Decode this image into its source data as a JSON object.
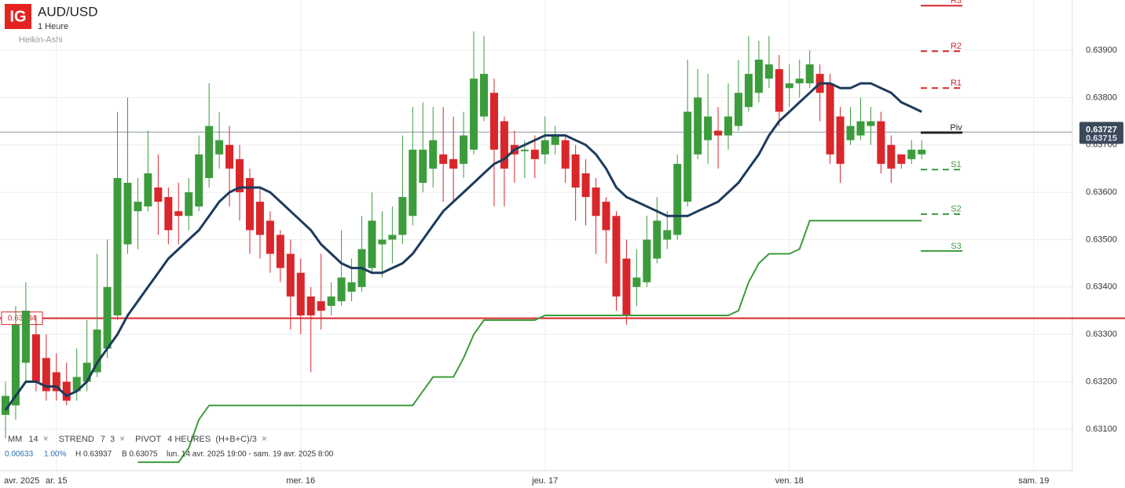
{
  "chart_data": {
    "type": "candlestick",
    "logo": "IG",
    "title": "AUD/USD",
    "subtitle": "1 Heure",
    "chart_style": "Heikin-Ashi",
    "up_color": "#3c9c3c",
    "down_color": "#d9262a",
    "open": [
      0.6313,
      0.6315,
      0.6324,
      0.633,
      0.6325,
      0.6322,
      0.632,
      0.6318,
      0.632,
      0.6322,
      0.6327,
      0.6334,
      0.6349,
      0.6356,
      0.6357,
      0.6361,
      0.6359,
      0.6356,
      0.6355,
      0.6357,
      0.6363,
      0.6368,
      0.637,
      0.6367,
      0.6363,
      0.6358,
      0.6354,
      0.6351,
      0.6347,
      0.6343,
      0.6338,
      0.6337,
      0.6336,
      0.6337,
      0.6339,
      0.634,
      0.6344,
      0.6349,
      0.635,
      0.6351,
      0.6355,
      0.6362,
      0.6365,
      0.6368,
      0.6367,
      0.6366,
      0.6369,
      0.6376,
      0.6381,
      0.6375,
      0.637,
      0.6369,
      0.6369,
      0.6368,
      0.637,
      0.6371,
      0.6368,
      0.6364,
      0.6361,
      0.6358,
      0.6355,
      0.6346,
      0.634,
      0.6341,
      0.6346,
      0.635,
      0.6351,
      0.6358,
      0.6368,
      0.6371,
      0.6373,
      0.6372,
      0.6374,
      0.6378,
      0.6381,
      0.6384,
      0.6386,
      0.6382,
      0.6383,
      0.6383,
      0.6385,
      0.6383,
      0.6376,
      0.6371,
      0.6372,
      0.6374,
      0.6375,
      0.637,
      0.6368,
      0.6367,
      0.6368
    ],
    "high": [
      0.632,
      0.6336,
      0.6341,
      0.6334,
      0.633,
      0.6326,
      0.6324,
      0.6327,
      0.6333,
      0.6347,
      0.635,
      0.6377,
      0.638,
      0.6363,
      0.6373,
      0.6368,
      0.6361,
      0.6362,
      0.6363,
      0.6372,
      0.6383,
      0.6377,
      0.6374,
      0.637,
      0.6365,
      0.6361,
      0.6356,
      0.6352,
      0.635,
      0.6346,
      0.634,
      0.6347,
      0.6341,
      0.6352,
      0.6346,
      0.6355,
      0.636,
      0.6356,
      0.6357,
      0.6372,
      0.6378,
      0.6379,
      0.6378,
      0.6378,
      0.6376,
      0.6377,
      0.6394,
      0.6393,
      0.6384,
      0.6376,
      0.6373,
      0.6371,
      0.6372,
      0.6376,
      0.6374,
      0.6372,
      0.637,
      0.6367,
      0.6363,
      0.6359,
      0.6356,
      0.635,
      0.6348,
      0.6355,
      0.6359,
      0.6356,
      0.6368,
      0.6388,
      0.6386,
      0.6385,
      0.6378,
      0.6383,
      0.6388,
      0.6393,
      0.6392,
      0.6393,
      0.6389,
      0.6387,
      0.6388,
      0.639,
      0.6387,
      0.6385,
      0.6378,
      0.6378,
      0.638,
      0.6378,
      0.6377,
      0.6372,
      0.6368,
      0.6371,
      0.6371
    ],
    "low": [
      0.6308,
      0.6312,
      0.632,
      0.6318,
      0.6316,
      0.6316,
      0.6315,
      0.6316,
      0.6318,
      0.6321,
      0.6325,
      0.6333,
      0.6347,
      0.6348,
      0.6356,
      0.6351,
      0.6349,
      0.6349,
      0.6352,
      0.6356,
      0.6361,
      0.6365,
      0.6357,
      0.6354,
      0.6347,
      0.6346,
      0.6343,
      0.6341,
      0.6331,
      0.633,
      0.6322,
      0.6331,
      0.6334,
      0.6336,
      0.6337,
      0.6339,
      0.6343,
      0.6342,
      0.6345,
      0.6349,
      0.6353,
      0.636,
      0.6361,
      0.6358,
      0.6358,
      0.6363,
      0.6368,
      0.6375,
      0.6357,
      0.6357,
      0.6362,
      0.6363,
      0.6363,
      0.6366,
      0.6368,
      0.6362,
      0.6354,
      0.6353,
      0.6347,
      0.6345,
      0.6335,
      0.6332,
      0.6336,
      0.634,
      0.6345,
      0.6348,
      0.635,
      0.6357,
      0.6367,
      0.6366,
      0.6365,
      0.6369,
      0.6373,
      0.6377,
      0.6379,
      0.6382,
      0.6374,
      0.6378,
      0.638,
      0.6382,
      0.6375,
      0.6366,
      0.6362,
      0.637,
      0.6371,
      0.637,
      0.6364,
      0.6362,
      0.6365,
      0.6366,
      0.6367
    ],
    "close": [
      0.6317,
      0.6332,
      0.6335,
      0.632,
      0.6318,
      0.6318,
      0.6316,
      0.6321,
      0.6324,
      0.6331,
      0.634,
      0.6363,
      0.6362,
      0.6358,
      0.6364,
      0.6358,
      0.6352,
      0.6355,
      0.636,
      0.6368,
      0.6374,
      0.6371,
      0.6365,
      0.636,
      0.6352,
      0.6351,
      0.6347,
      0.6344,
      0.6338,
      0.6334,
      0.6334,
      0.6335,
      0.6338,
      0.6342,
      0.6341,
      0.6348,
      0.6354,
      0.635,
      0.6351,
      0.6359,
      0.6369,
      0.6369,
      0.6371,
      0.6366,
      0.6365,
      0.6372,
      0.6384,
      0.6385,
      0.6369,
      0.6365,
      0.6368,
      0.6369,
      0.6367,
      0.6371,
      0.6372,
      0.6365,
      0.6361,
      0.6359,
      0.6355,
      0.6352,
      0.6338,
      0.6334,
      0.6342,
      0.635,
      0.6354,
      0.6352,
      0.6366,
      0.6377,
      0.638,
      0.6376,
      0.6372,
      0.6376,
      0.6381,
      0.6385,
      0.6388,
      0.6387,
      0.6377,
      0.6383,
      0.6384,
      0.6387,
      0.6381,
      0.6368,
      0.6366,
      0.6374,
      0.6375,
      0.6375,
      0.6366,
      0.6365,
      0.6366,
      0.6369,
      0.6369
    ],
    "indicators": [
      {
        "name": "MM",
        "params": "14",
        "color": "#1d3b5c",
        "values": [
          0.6314,
          0.6317,
          0.632,
          0.632,
          0.6319,
          0.6319,
          0.6317,
          0.6318,
          0.632,
          0.6324,
          0.6327,
          0.633,
          0.6334,
          0.6337,
          0.634,
          0.6343,
          0.6346,
          0.6348,
          0.635,
          0.6352,
          0.6355,
          0.6358,
          0.636,
          0.6361,
          0.6361,
          0.6361,
          0.636,
          0.6358,
          0.6356,
          0.6354,
          0.6352,
          0.6349,
          0.6347,
          0.6345,
          0.6344,
          0.6344,
          0.6343,
          0.6343,
          0.6344,
          0.6345,
          0.6347,
          0.635,
          0.6353,
          0.6356,
          0.6358,
          0.636,
          0.6362,
          0.6364,
          0.6366,
          0.6367,
          0.6369,
          0.637,
          0.6371,
          0.6372,
          0.6372,
          0.6372,
          0.6371,
          0.637,
          0.6368,
          0.6365,
          0.6361,
          0.6359,
          0.6358,
          0.6357,
          0.6356,
          0.6355,
          0.6355,
          0.6355,
          0.6356,
          0.6357,
          0.6358,
          0.636,
          0.6362,
          0.6365,
          0.6368,
          0.6372,
          0.6375,
          0.6377,
          0.6379,
          0.6381,
          0.6383,
          0.6383,
          0.6382,
          0.6382,
          0.6383,
          0.6383,
          0.6382,
          0.6381,
          0.6379,
          0.6378,
          0.6377
        ]
      },
      {
        "name": "STREND",
        "params": "7  3",
        "color": "#3c9c3c",
        "values": [
          null,
          null,
          null,
          null,
          null,
          null,
          null,
          null,
          null,
          null,
          null,
          null,
          null,
          0.6303,
          0.6303,
          0.6303,
          0.6303,
          0.6303,
          0.6306,
          0.6312,
          0.6315,
          0.6315,
          0.6315,
          0.6315,
          0.6315,
          0.6315,
          0.6315,
          0.6315,
          0.6315,
          0.6315,
          0.6315,
          0.6315,
          0.6315,
          0.6315,
          0.6315,
          0.6315,
          0.6315,
          0.6315,
          0.6315,
          0.6315,
          0.6315,
          0.6318,
          0.6321,
          0.6321,
          0.6321,
          0.6325,
          0.633,
          0.6333,
          0.6333,
          0.6333,
          0.6333,
          0.6333,
          0.6333,
          0.6334,
          0.6334,
          0.6334,
          0.6334,
          0.6334,
          0.6334,
          0.6334,
          0.6334,
          0.6334,
          0.6334,
          0.6334,
          0.6334,
          0.6334,
          0.6334,
          0.6334,
          0.6334,
          0.6334,
          0.6334,
          0.6334,
          0.6335,
          0.6341,
          0.6345,
          0.6347,
          0.6347,
          0.6347,
          0.6348,
          0.6354,
          0.6354,
          0.6354,
          0.6354,
          0.6354,
          0.6354,
          0.6354,
          0.6354,
          0.6354,
          0.6354,
          0.6354,
          0.6354
        ]
      },
      {
        "name": "PIVOT",
        "params": "4 HEURES  (H+B+C)/3"
      }
    ],
    "pivots": [
      {
        "name": "R3",
        "value": 0.63994,
        "color": "#d9262a",
        "dash": false
      },
      {
        "name": "R2",
        "value": 0.63898,
        "color": "#d9262a",
        "dash": true
      },
      {
        "name": "R1",
        "value": 0.6382,
        "color": "#d9262a",
        "dash": true
      },
      {
        "name": "Piv",
        "value": 0.63726,
        "color": "#222222",
        "dash": false
      },
      {
        "name": "S1",
        "value": 0.63648,
        "color": "#3c9c3c",
        "dash": true
      },
      {
        "name": "S2",
        "value": 0.63554,
        "color": "#3c9c3c",
        "dash": true
      },
      {
        "name": "S3",
        "value": 0.63476,
        "color": "#3c9c3c",
        "dash": false
      }
    ],
    "last_price": {
      "value": 0.63727,
      "label": "0.63727"
    },
    "last_price_2": {
      "value": 0.63715,
      "label": "0.63715"
    },
    "alert_line": {
      "value": 0.63334,
      "label": "0.63334"
    },
    "stats": {
      "change": "0.00633",
      "change_pct": "1.00%",
      "high": "H 0.63937",
      "low": "B 0.63075",
      "range": "lun. 14 avr. 2025 19:00 - sam. 19 avr. 2025 8:00"
    },
    "xlim": [
      -0.54,
      104.8
    ],
    "xticks": [
      {
        "value": 1.6,
        "label": "avr. 2025"
      },
      {
        "value": 5,
        "label": "ar. 15"
      },
      {
        "value": 29,
        "label": "mer. 16"
      },
      {
        "value": 53,
        "label": "jeu. 17"
      },
      {
        "value": 77,
        "label": "ven. 18"
      },
      {
        "value": 101,
        "label": "sam. 19"
      }
    ],
    "ylim": [
      0.63012,
      0.64006
    ],
    "yticks": [
      {
        "value": 0.631,
        "label": "0.63100"
      },
      {
        "value": 0.632,
        "label": "0.63200"
      },
      {
        "value": 0.633,
        "label": "0.63300"
      },
      {
        "value": 0.634,
        "label": "0.63400"
      },
      {
        "value": 0.635,
        "label": "0.63500"
      },
      {
        "value": 0.636,
        "label": "0.63600"
      },
      {
        "value": 0.637,
        "label": "0.63700"
      },
      {
        "value": 0.638,
        "label": "0.63800"
      },
      {
        "value": 0.639,
        "label": "0.63900"
      }
    ],
    "grid": true
  }
}
